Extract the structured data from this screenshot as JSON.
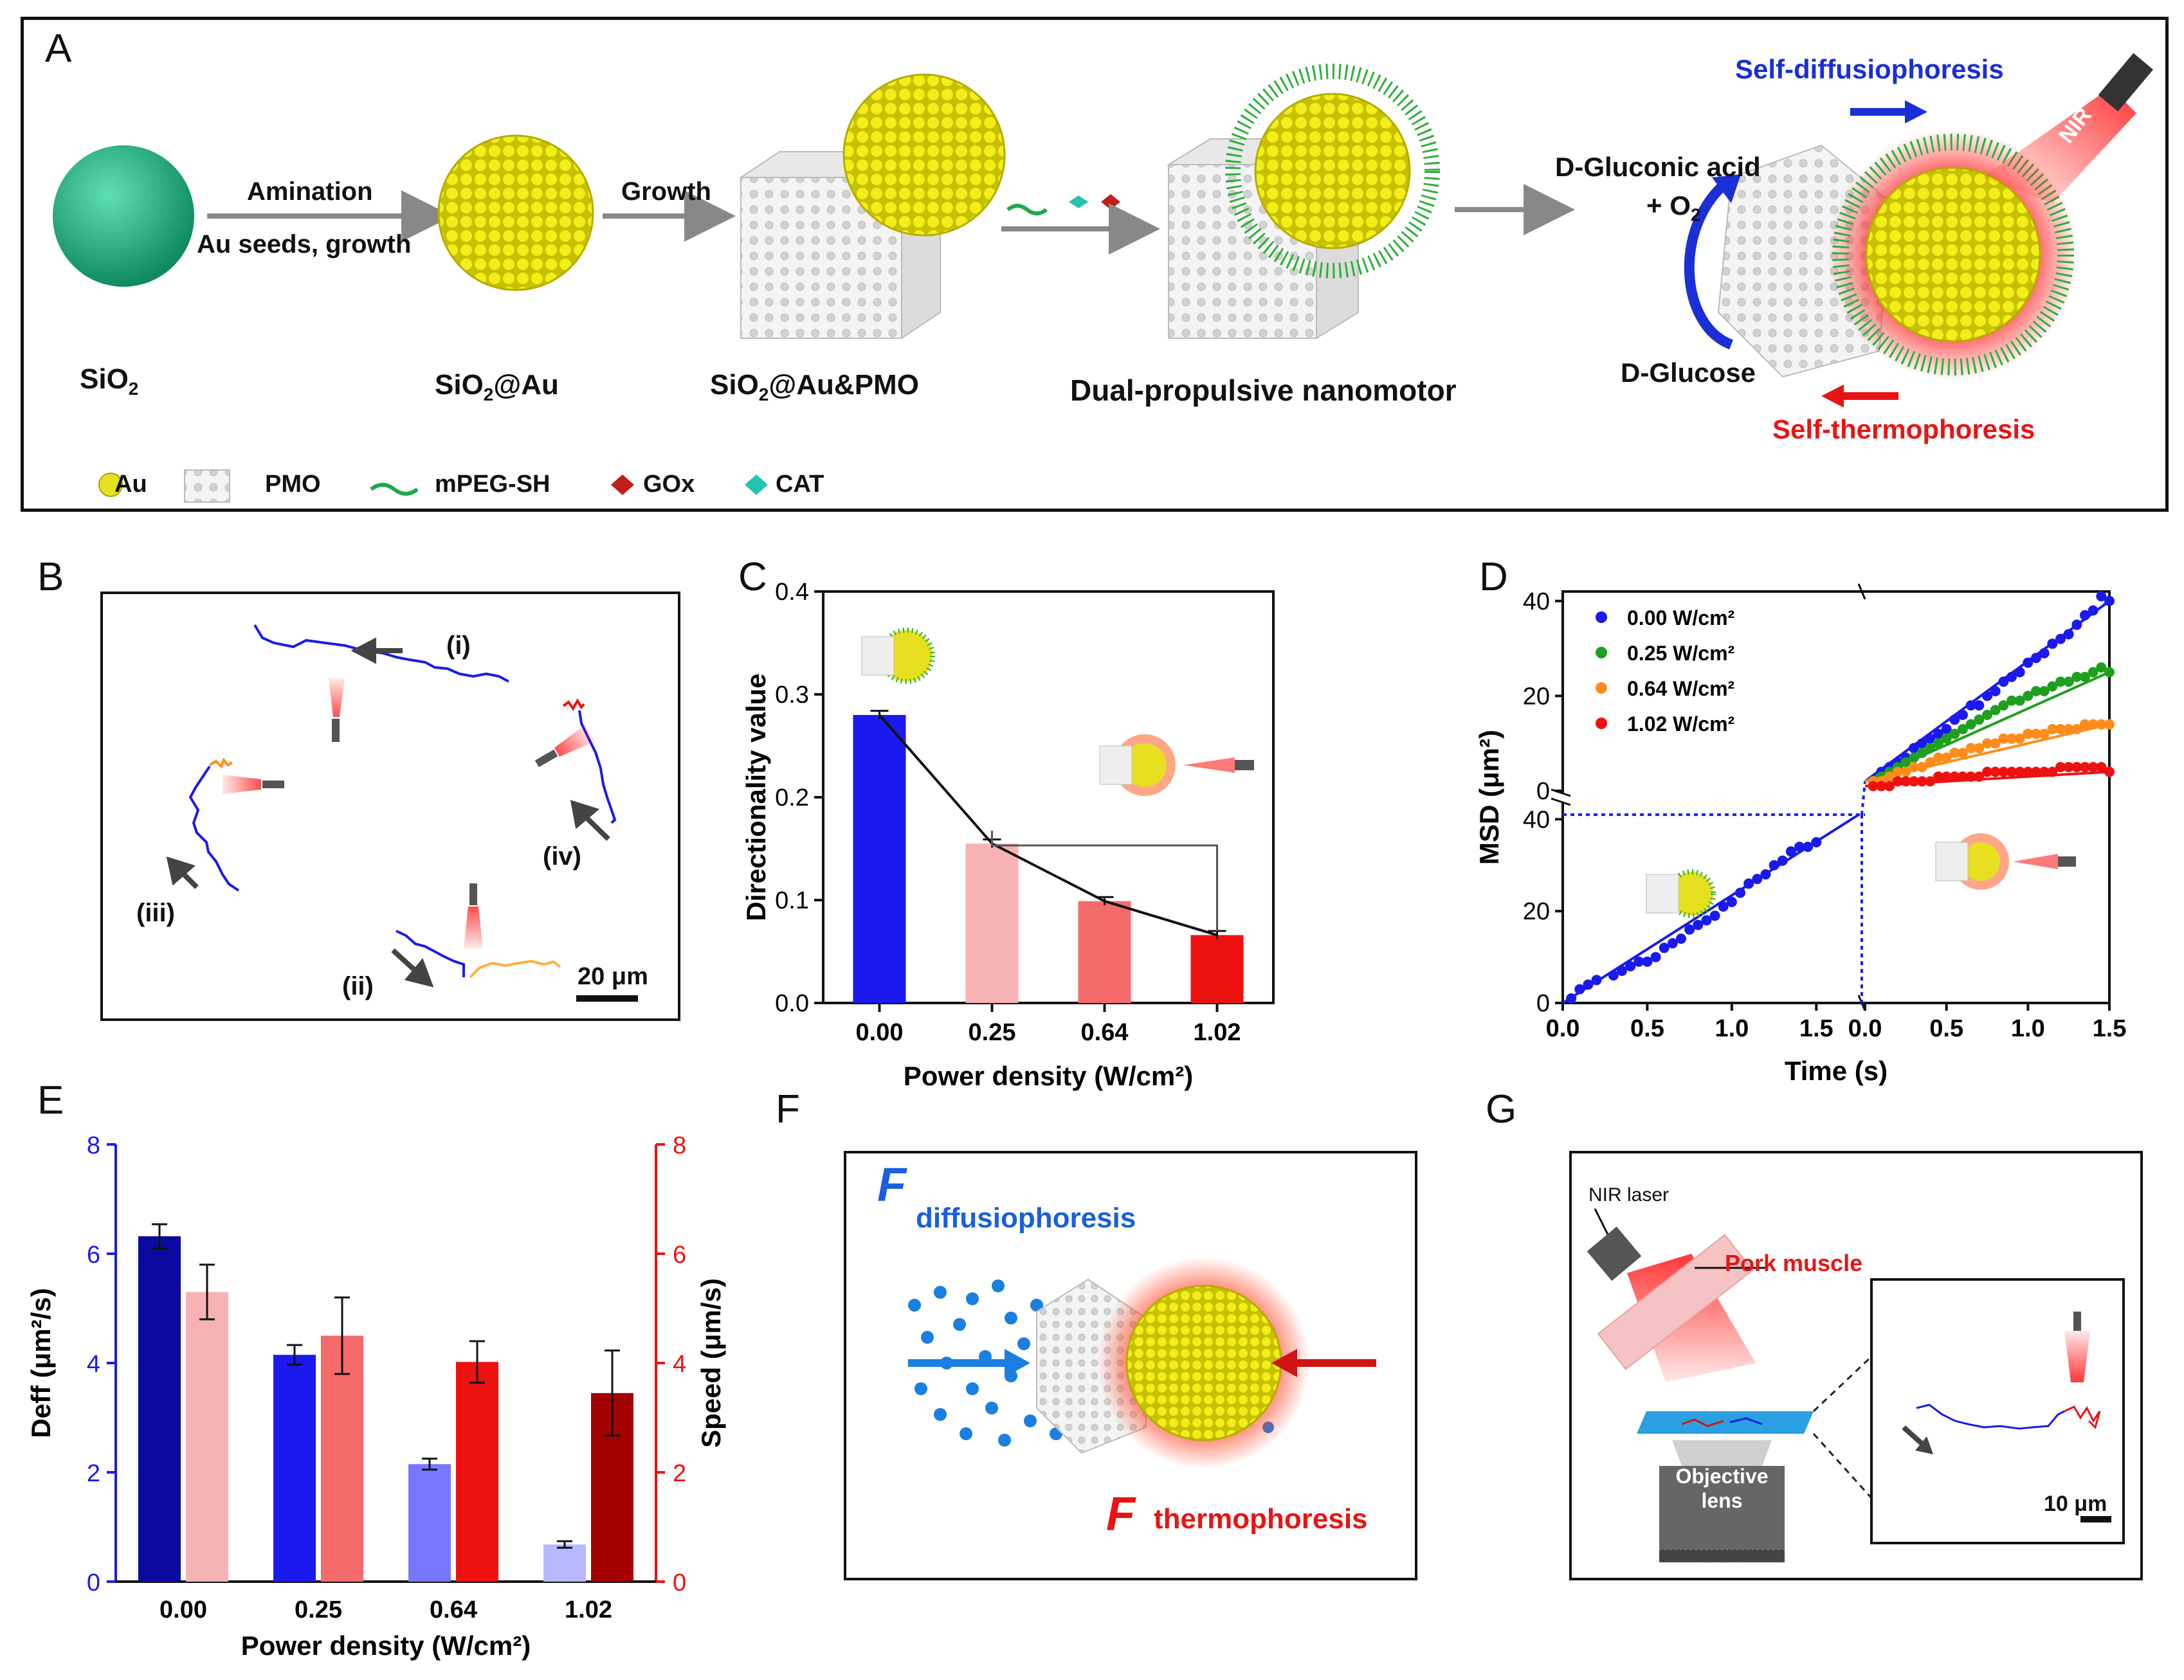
{
  "panelA": {
    "letter": "A",
    "step1_top": "Amination",
    "step1_bottom": "Au seeds, growth",
    "step2": "Growth",
    "sio2": "SiO2",
    "sio2au": "SiO2@Au",
    "sio2aupmo": "SiO2@Au&PMO",
    "nanomotor": "Dual-propulsive nanomotor",
    "self_diffusio": "Self-diffusiophoresis",
    "self_thermo": "Self-thermophoresis",
    "gluconic_line1": "D-Gluconic  acid",
    "gluconic_line2": "+ O2",
    "glucose": "D-Glucose",
    "nir": "NIR",
    "legend": {
      "au": "Au",
      "pmo": "PMO",
      "mpeg": "mPEG-SH",
      "gox": "GOx",
      "cat": "CAT"
    }
  },
  "panelB": {
    "letter": "B",
    "t1": "(i)",
    "t2": "(ii)",
    "t3": "(iii)",
    "t4": "(iv)",
    "scale": "20 μm"
  },
  "panelC": {
    "letter": "C"
  },
  "panelD": {
    "letter": "D"
  },
  "panelE": {
    "letter": "E"
  },
  "panelF": {
    "letter": "F",
    "f1": "F",
    "f1_sub": "diffusiophoresis",
    "f2": "F",
    "f2_sub": "thermophoresis"
  },
  "panelG": {
    "letter": "G",
    "nir_laser": "NIR laser",
    "pork": "Pork muscle",
    "objective_1": "Objective",
    "objective_2": "lens",
    "scale": "10 μm"
  },
  "colors": {
    "blue": "#1a1aee",
    "red": "#ee1111",
    "pink": "#f7b3b3",
    "salmon": "#f56b6b",
    "darkblue": "#0a0a9e",
    "darkred": "#a30000",
    "lightblue": "#7777ff",
    "paleblue": "#b8b8ff"
  },
  "chart_data": [
    {
      "id": "C",
      "type": "bar",
      "categories": [
        "0.00",
        "0.25",
        "0.64",
        "1.02"
      ],
      "values": [
        0.28,
        0.155,
        0.099,
        0.066
      ],
      "errors": [
        0.004,
        0.004,
        0.004,
        0.004
      ],
      "colors": [
        "#1a1aee",
        "#f7b3b3",
        "#f56b6b",
        "#ee1111"
      ],
      "ylabel": "Directionality value",
      "xlabel": "Power density (W/cm²)",
      "ylim": [
        0,
        0.4
      ],
      "yticks": [
        "0.0",
        "0.1",
        "0.2",
        "0.3",
        "0.4"
      ]
    },
    {
      "id": "D",
      "type": "scatter",
      "ylabel": "MSD (μm²)",
      "xlabel": "Time (s)",
      "xticks": [
        "0.0",
        "0.5",
        "1.0",
        "1.5"
      ],
      "upper_yticks": [
        "0",
        "20",
        "40"
      ],
      "lower_yticks": [
        "0",
        "20",
        "40"
      ],
      "lower": {
        "x": [
          0.05,
          0.1,
          0.15,
          0.2,
          0.3,
          0.35,
          0.4,
          0.45,
          0.5,
          0.55,
          0.6,
          0.65,
          0.7,
          0.75,
          0.8,
          0.85,
          0.9,
          0.95,
          1.0,
          1.05,
          1.1,
          1.15,
          1.2,
          1.25,
          1.3,
          1.35,
          1.4,
          1.45,
          1.5
        ],
        "y": [
          1,
          3,
          4,
          5,
          6,
          7,
          8,
          9,
          9,
          10,
          12,
          13,
          14,
          16,
          17,
          18,
          19,
          21,
          22,
          24,
          26,
          27,
          28,
          30,
          31,
          33,
          34,
          34,
          35
        ]
      },
      "series": [
        {
          "name": "0.00 W/cm²",
          "color": "#1a1aee",
          "x": [
            0.05,
            0.1,
            0.15,
            0.2,
            0.25,
            0.3,
            0.35,
            0.4,
            0.45,
            0.5,
            0.55,
            0.6,
            0.65,
            0.7,
            0.75,
            0.8,
            0.85,
            0.9,
            0.95,
            1.0,
            1.05,
            1.1,
            1.15,
            1.2,
            1.25,
            1.3,
            1.35,
            1.4,
            1.45,
            1.5
          ],
          "y": [
            2,
            4,
            5,
            6,
            7,
            9,
            10,
            11,
            12,
            13,
            15,
            16,
            18,
            18,
            20,
            21,
            23,
            24,
            25,
            27,
            28,
            29,
            31,
            32,
            33,
            35,
            37,
            38,
            41,
            40
          ]
        },
        {
          "name": "0.25 W/cm²",
          "color": "#1ea01e",
          "x": [
            0.05,
            0.1,
            0.15,
            0.2,
            0.25,
            0.3,
            0.35,
            0.4,
            0.45,
            0.5,
            0.55,
            0.6,
            0.65,
            0.7,
            0.75,
            0.8,
            0.85,
            0.9,
            0.95,
            1.0,
            1.05,
            1.1,
            1.15,
            1.2,
            1.25,
            1.3,
            1.35,
            1.4,
            1.45,
            1.5
          ],
          "y": [
            2,
            3,
            4,
            5,
            6,
            7,
            8,
            9,
            10,
            11,
            12,
            13,
            14,
            15,
            16,
            17,
            18,
            19,
            19,
            20,
            21,
            21,
            22,
            23,
            23,
            24,
            24,
            25,
            26,
            25
          ]
        },
        {
          "name": "0.64 W/cm²",
          "color": "#ff8c1a",
          "x": [
            0.05,
            0.1,
            0.15,
            0.2,
            0.25,
            0.3,
            0.35,
            0.4,
            0.45,
            0.5,
            0.55,
            0.6,
            0.65,
            0.7,
            0.75,
            0.8,
            0.85,
            0.9,
            0.95,
            1.0,
            1.05,
            1.1,
            1.15,
            1.2,
            1.25,
            1.3,
            1.35,
            1.4,
            1.45,
            1.5
          ],
          "y": [
            2,
            2,
            3,
            4,
            4,
            5,
            5,
            6,
            7,
            7,
            8,
            8,
            9,
            9,
            10,
            10,
            11,
            11,
            11,
            12,
            12,
            12,
            13,
            13,
            13,
            13,
            14,
            14,
            14,
            14
          ]
        },
        {
          "name": "1.02 W/cm²",
          "color": "#ee1111",
          "x": [
            0.05,
            0.1,
            0.15,
            0.2,
            0.25,
            0.3,
            0.35,
            0.4,
            0.45,
            0.5,
            0.55,
            0.6,
            0.65,
            0.7,
            0.75,
            0.8,
            0.85,
            0.9,
            0.95,
            1.0,
            1.05,
            1.1,
            1.15,
            1.2,
            1.25,
            1.3,
            1.35,
            1.4,
            1.45,
            1.5
          ],
          "y": [
            1,
            1,
            1,
            2,
            2,
            2,
            2,
            2,
            3,
            3,
            3,
            3,
            3,
            3,
            4,
            4,
            4,
            4,
            4,
            4,
            4,
            4,
            4,
            5,
            5,
            5,
            5,
            5,
            5,
            4
          ]
        }
      ]
    },
    {
      "id": "E",
      "type": "bar",
      "categories": [
        "0.00",
        "0.25",
        "0.64",
        "1.02"
      ],
      "left_ylabel": "Deff (μm²/s)",
      "right_ylabel": "Speed (μm/s)",
      "xlabel": "Power density (W/cm²)",
      "ylim": [
        0,
        8
      ],
      "yticks": [
        "0",
        "2",
        "4",
        "6",
        "8"
      ],
      "deff": [
        6.32,
        4.15,
        2.15,
        0.68
      ],
      "deff_err": [
        0.22,
        0.18,
        0.1,
        0.06
      ],
      "deff_colors": [
        "#0a0a9e",
        "#1a1aee",
        "#7777ff",
        "#b8b8ff"
      ],
      "speed": [
        5.3,
        4.5,
        4.02,
        3.45
      ],
      "speed_err": [
        0.5,
        0.7,
        0.38,
        0.78
      ],
      "speed_colors": [
        "#f7b3b3",
        "#f56b6b",
        "#ee1111",
        "#a30000"
      ]
    }
  ]
}
